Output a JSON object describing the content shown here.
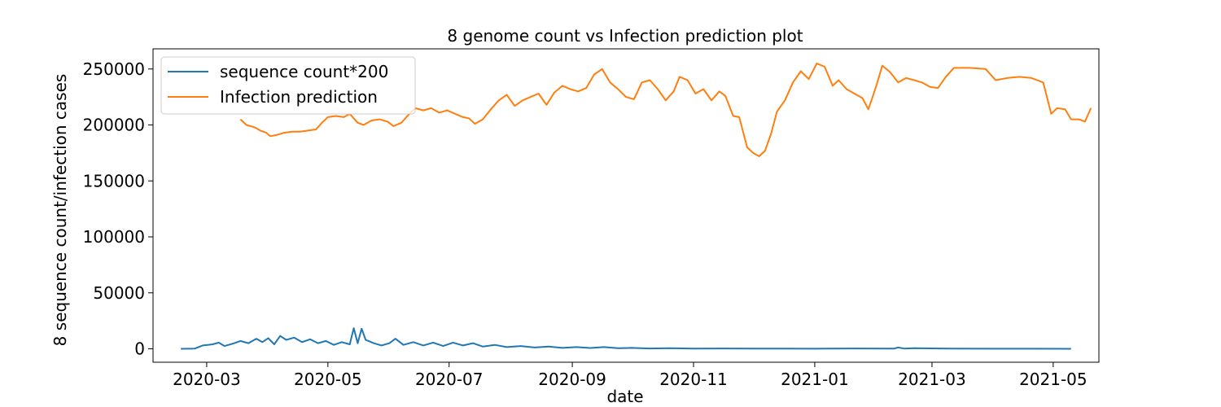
{
  "chart_data": {
    "type": "line",
    "title": "8 genome count vs Infection prediction plot",
    "xlabel": "date",
    "ylabel": "8 sequence count/infection cases",
    "xlim": [
      "2020-02-03",
      "2021-05-24"
    ],
    "ylim": [
      -12000,
      268000
    ],
    "x_ticks": [
      "2020-03",
      "2020-05",
      "2020-07",
      "2020-09",
      "2020-11",
      "2021-01",
      "2021-03",
      "2021-05"
    ],
    "x_tick_dates": [
      "2020-03-01",
      "2020-05-01",
      "2020-07-01",
      "2020-09-01",
      "2020-11-01",
      "2021-01-01",
      "2021-03-01",
      "2021-05-01"
    ],
    "y_ticks": [
      0,
      50000,
      100000,
      150000,
      200000,
      250000
    ],
    "y_tick_labels": [
      "0",
      "50000",
      "100000",
      "150000",
      "200000",
      "250000"
    ],
    "grid": false,
    "legend_position": "top-left",
    "colors": {
      "sequence": "#1f77b4",
      "prediction": "#ff7f0e"
    },
    "series": [
      {
        "name": "sequence count*200",
        "color": "#1f77b4",
        "points": [
          [
            "2020-02-17",
            0
          ],
          [
            "2020-02-24",
            200
          ],
          [
            "2020-02-28",
            3000
          ],
          [
            "2020-03-04",
            4000
          ],
          [
            "2020-03-07",
            5500
          ],
          [
            "2020-03-10",
            2500
          ],
          [
            "2020-03-14",
            4500
          ],
          [
            "2020-03-18",
            7000
          ],
          [
            "2020-03-22",
            5000
          ],
          [
            "2020-03-26",
            9000
          ],
          [
            "2020-03-29",
            6000
          ],
          [
            "2020-04-01",
            9500
          ],
          [
            "2020-04-04",
            4000
          ],
          [
            "2020-04-07",
            11500
          ],
          [
            "2020-04-10",
            8000
          ],
          [
            "2020-04-14",
            10000
          ],
          [
            "2020-04-18",
            6000
          ],
          [
            "2020-04-22",
            8500
          ],
          [
            "2020-04-26",
            5000
          ],
          [
            "2020-04-30",
            7000
          ],
          [
            "2020-05-04",
            3500
          ],
          [
            "2020-05-08",
            6000
          ],
          [
            "2020-05-12",
            4000
          ],
          [
            "2020-05-14",
            18500
          ],
          [
            "2020-05-16",
            5000
          ],
          [
            "2020-05-18",
            18000
          ],
          [
            "2020-05-20",
            8000
          ],
          [
            "2020-05-24",
            5000
          ],
          [
            "2020-05-28",
            3000
          ],
          [
            "2020-06-01",
            5000
          ],
          [
            "2020-06-04",
            9000
          ],
          [
            "2020-06-08",
            3500
          ],
          [
            "2020-06-13",
            6000
          ],
          [
            "2020-06-18",
            3000
          ],
          [
            "2020-06-23",
            5500
          ],
          [
            "2020-06-28",
            2500
          ],
          [
            "2020-07-03",
            5500
          ],
          [
            "2020-07-08",
            3000
          ],
          [
            "2020-07-13",
            5000
          ],
          [
            "2020-07-18",
            2000
          ],
          [
            "2020-07-24",
            3500
          ],
          [
            "2020-07-30",
            1500
          ],
          [
            "2020-08-06",
            2500
          ],
          [
            "2020-08-13",
            1200
          ],
          [
            "2020-08-20",
            2000
          ],
          [
            "2020-08-27",
            800
          ],
          [
            "2020-09-03",
            1500
          ],
          [
            "2020-09-10",
            700
          ],
          [
            "2020-09-17",
            1500
          ],
          [
            "2020-09-24",
            500
          ],
          [
            "2020-10-01",
            800
          ],
          [
            "2020-10-10",
            300
          ],
          [
            "2020-10-20",
            500
          ],
          [
            "2020-11-01",
            200
          ],
          [
            "2020-11-15",
            300
          ],
          [
            "2020-12-01",
            200
          ],
          [
            "2020-12-15",
            200
          ],
          [
            "2021-01-01",
            100
          ],
          [
            "2021-01-20",
            300
          ],
          [
            "2021-02-10",
            200
          ],
          [
            "2021-02-12",
            1200
          ],
          [
            "2021-02-15",
            200
          ],
          [
            "2021-02-20",
            500
          ],
          [
            "2021-03-10",
            200
          ],
          [
            "2021-04-01",
            100
          ],
          [
            "2021-04-20",
            100
          ],
          [
            "2021-05-10",
            0
          ]
        ]
      },
      {
        "name": "Infection prediction",
        "color": "#ff7f0e",
        "points": [
          [
            "2020-03-18",
            205000
          ],
          [
            "2020-03-21",
            200000
          ],
          [
            "2020-03-25",
            198000
          ],
          [
            "2020-03-28",
            195000
          ],
          [
            "2020-03-31",
            193000
          ],
          [
            "2020-04-02",
            190000
          ],
          [
            "2020-04-05",
            191000
          ],
          [
            "2020-04-09",
            193000
          ],
          [
            "2020-04-13",
            194000
          ],
          [
            "2020-04-17",
            194000
          ],
          [
            "2020-04-21",
            195000
          ],
          [
            "2020-04-25",
            196000
          ],
          [
            "2020-04-28",
            202000
          ],
          [
            "2020-05-01",
            207000
          ],
          [
            "2020-05-05",
            208000
          ],
          [
            "2020-05-09",
            207000
          ],
          [
            "2020-05-12",
            210000
          ],
          [
            "2020-05-16",
            202000
          ],
          [
            "2020-05-19",
            200000
          ],
          [
            "2020-05-23",
            204000
          ],
          [
            "2020-05-27",
            205000
          ],
          [
            "2020-05-31",
            203000
          ],
          [
            "2020-06-03",
            199000
          ],
          [
            "2020-06-07",
            202000
          ],
          [
            "2020-06-10",
            208000
          ],
          [
            "2020-06-14",
            215000
          ],
          [
            "2020-06-18",
            213000
          ],
          [
            "2020-06-22",
            215000
          ],
          [
            "2020-06-26",
            211000
          ],
          [
            "2020-06-30",
            213000
          ],
          [
            "2020-07-04",
            210000
          ],
          [
            "2020-07-08",
            207000
          ],
          [
            "2020-07-11",
            206000
          ],
          [
            "2020-07-14",
            201000
          ],
          [
            "2020-07-18",
            205000
          ],
          [
            "2020-07-22",
            214000
          ],
          [
            "2020-07-26",
            222000
          ],
          [
            "2020-07-30",
            227000
          ],
          [
            "2020-08-03",
            217000
          ],
          [
            "2020-08-07",
            222000
          ],
          [
            "2020-08-11",
            225000
          ],
          [
            "2020-08-15",
            228000
          ],
          [
            "2020-08-19",
            218000
          ],
          [
            "2020-08-23",
            229000
          ],
          [
            "2020-08-27",
            235000
          ],
          [
            "2020-08-31",
            232000
          ],
          [
            "2020-09-04",
            230000
          ],
          [
            "2020-09-08",
            233000
          ],
          [
            "2020-09-12",
            245000
          ],
          [
            "2020-09-16",
            250000
          ],
          [
            "2020-09-20",
            238000
          ],
          [
            "2020-09-24",
            232000
          ],
          [
            "2020-09-28",
            225000
          ],
          [
            "2020-10-02",
            223000
          ],
          [
            "2020-10-06",
            238000
          ],
          [
            "2020-10-10",
            240000
          ],
          [
            "2020-10-14",
            232000
          ],
          [
            "2020-10-18",
            222000
          ],
          [
            "2020-10-22",
            230000
          ],
          [
            "2020-10-25",
            243000
          ],
          [
            "2020-10-29",
            240000
          ],
          [
            "2020-11-02",
            228000
          ],
          [
            "2020-11-06",
            232000
          ],
          [
            "2020-11-10",
            222000
          ],
          [
            "2020-11-14",
            230000
          ],
          [
            "2020-11-17",
            226000
          ],
          [
            "2020-11-21",
            208000
          ],
          [
            "2020-11-24",
            207000
          ],
          [
            "2020-11-28",
            180000
          ],
          [
            "2020-12-01",
            175000
          ],
          [
            "2020-12-04",
            172000
          ],
          [
            "2020-12-07",
            177000
          ],
          [
            "2020-12-10",
            192000
          ],
          [
            "2020-12-13",
            212000
          ],
          [
            "2020-12-17",
            222000
          ],
          [
            "2020-12-21",
            238000
          ],
          [
            "2020-12-25",
            248000
          ],
          [
            "2020-12-29",
            241000
          ],
          [
            "2021-01-02",
            255000
          ],
          [
            "2021-01-06",
            252000
          ],
          [
            "2021-01-10",
            235000
          ],
          [
            "2021-01-13",
            240000
          ],
          [
            "2021-01-17",
            232000
          ],
          [
            "2021-01-21",
            228000
          ],
          [
            "2021-01-25",
            224000
          ],
          [
            "2021-01-28",
            214000
          ],
          [
            "2021-02-01",
            235000
          ],
          [
            "2021-02-04",
            253000
          ],
          [
            "2021-02-08",
            247000
          ],
          [
            "2021-02-12",
            238000
          ],
          [
            "2021-02-16",
            242000
          ],
          [
            "2021-02-20",
            240000
          ],
          [
            "2021-02-24",
            238000
          ],
          [
            "2021-02-28",
            234000
          ],
          [
            "2021-03-04",
            233000
          ],
          [
            "2021-03-08",
            243000
          ],
          [
            "2021-03-12",
            251000
          ],
          [
            "2021-03-20",
            251000
          ],
          [
            "2021-03-28",
            250000
          ],
          [
            "2021-04-02",
            240000
          ],
          [
            "2021-04-08",
            242000
          ],
          [
            "2021-04-14",
            243000
          ],
          [
            "2021-04-20",
            242000
          ],
          [
            "2021-04-26",
            238000
          ],
          [
            "2021-04-30",
            210000
          ],
          [
            "2021-05-03",
            215000
          ],
          [
            "2021-05-07",
            214000
          ],
          [
            "2021-05-10",
            205000
          ],
          [
            "2021-05-14",
            205000
          ],
          [
            "2021-05-17",
            203000
          ],
          [
            "2021-05-20",
            215000
          ]
        ]
      }
    ]
  }
}
